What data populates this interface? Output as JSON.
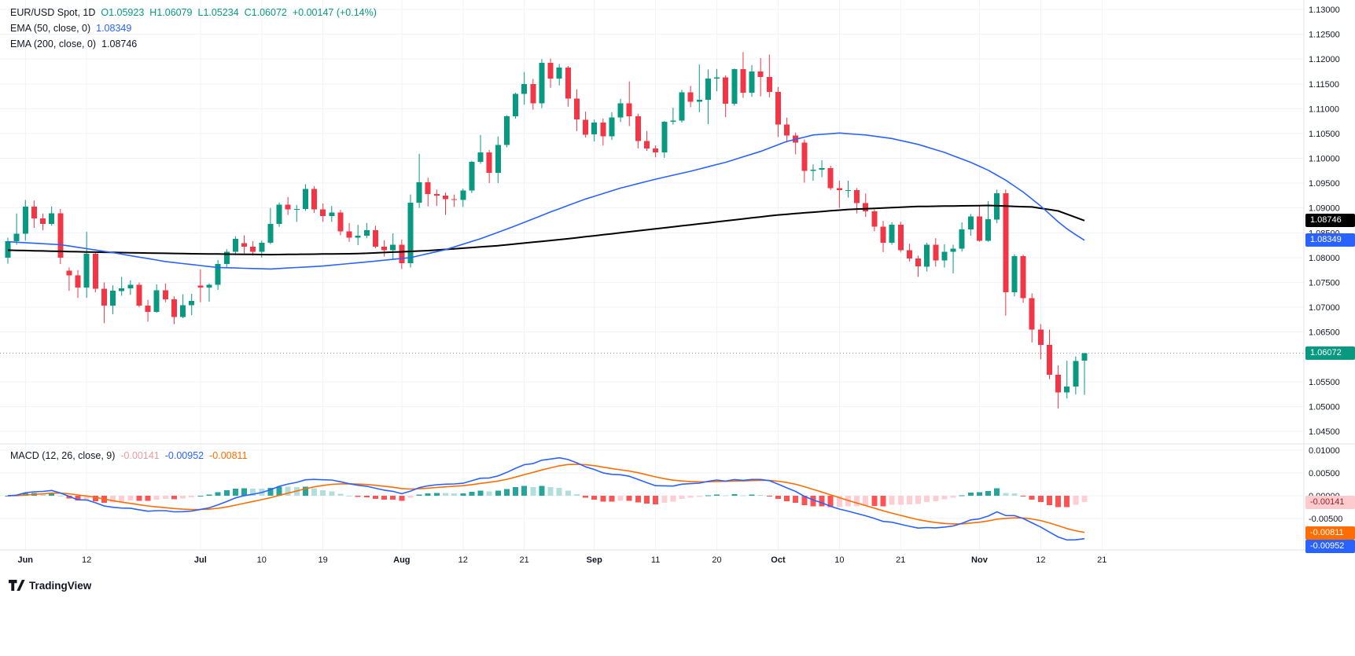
{
  "header": {
    "symbol_title": "EUR/USD Spot, 1D",
    "ohlc": {
      "o": "O1.05923",
      "h": "H1.06079",
      "l": "L1.05234",
      "c": "C1.06072",
      "change": "+0.00147 (+0.14%)"
    },
    "ema50": {
      "label": "EMA (50, close, 0)",
      "value": "1.08349"
    },
    "ema200": {
      "label": "EMA (200, close, 0)",
      "value": "1.08746"
    }
  },
  "macd_legend": {
    "label": "MACD (12, 26, close, 9)",
    "hist_value": "-0.00141",
    "macd_value": "-0.00952",
    "signal_value": "-0.00811"
  },
  "axis_badges": {
    "ema200": {
      "label": "1.08746",
      "value": 1.08746,
      "pane": "main"
    },
    "ema50": {
      "label": "1.08349",
      "value": 1.08349,
      "pane": "main"
    },
    "price": {
      "label": "1.06072",
      "value": 1.06072,
      "pane": "main"
    },
    "macd_hist": {
      "label": "-0.00141",
      "value": -0.00141,
      "pane": "macd"
    },
    "macd_signal": {
      "label": "-0.00811",
      "value": -0.00811,
      "pane": "macd"
    },
    "macd_line": {
      "label": "-0.00952",
      "value": -0.00952,
      "pane": "macd"
    }
  },
  "watermark": {
    "brand": "TradingView"
  },
  "colors": {
    "up": "#089981",
    "down": "#f23645",
    "ema50": "#2962ff",
    "ema200": "#000000",
    "macd": "#2962ff",
    "signal": "#ff6d00",
    "hist_grow_above": "#26a69a",
    "hist_fall_above": "#b2dfdb",
    "hist_fall_below": "#ff5252",
    "hist_grow_below": "#ffcdd2",
    "grid": "#f0f3fa",
    "border": "#e0e3eb",
    "axis_text": "#131722",
    "price_line": "#9598a1",
    "legend_hist_value": "#f09a9f"
  },
  "chart_data": {
    "type": "candlestick",
    "symbol": "EUR/USD Spot",
    "timeframe": "1D",
    "ylim": [
      1.045,
      1.13
    ],
    "current_price": 1.06072,
    "macd_params": {
      "fast": 12,
      "slow": 26,
      "signal": 9,
      "source": "close"
    },
    "price_ticks": [
      {
        "v": 1.13,
        "label": "1.13000"
      },
      {
        "v": 1.125,
        "label": "1.12500"
      },
      {
        "v": 1.12,
        "label": "1.12000"
      },
      {
        "v": 1.115,
        "label": "1.11500"
      },
      {
        "v": 1.11,
        "label": "1.11000"
      },
      {
        "v": 1.105,
        "label": "1.10500"
      },
      {
        "v": 1.1,
        "label": "1.10000"
      },
      {
        "v": 1.095,
        "label": "1.09500"
      },
      {
        "v": 1.09,
        "label": "1.09000"
      },
      {
        "v": 1.085,
        "label": "1.08500"
      },
      {
        "v": 1.08,
        "label": "1.08000"
      },
      {
        "v": 1.075,
        "label": "1.07500"
      },
      {
        "v": 1.07,
        "label": "1.07000"
      },
      {
        "v": 1.065,
        "label": "1.06500"
      },
      {
        "v": 1.055,
        "label": "1.05500"
      },
      {
        "v": 1.05,
        "label": "1.05000"
      },
      {
        "v": 1.045,
        "label": "1.04500"
      }
    ],
    "macd_ticks": [
      {
        "v": 0.01,
        "label": "0.01000"
      },
      {
        "v": 0.005,
        "label": "0.00500"
      },
      {
        "v": 0,
        "label": "0.00000"
      },
      {
        "v": -0.005,
        "label": "-0.00500"
      }
    ],
    "time_ticks": [
      {
        "index": 2,
        "label": "Jun",
        "major": true
      },
      {
        "index": 9,
        "label": "12",
        "major": false
      },
      {
        "index": 22,
        "label": "Jul",
        "major": true
      },
      {
        "index": 29,
        "label": "10",
        "major": false
      },
      {
        "index": 36,
        "label": "19",
        "major": false
      },
      {
        "index": 45,
        "label": "Aug",
        "major": true
      },
      {
        "index": 52,
        "label": "12",
        "major": false
      },
      {
        "index": 59,
        "label": "21",
        "major": false
      },
      {
        "index": 67,
        "label": "Sep",
        "major": true
      },
      {
        "index": 74,
        "label": "11",
        "major": false
      },
      {
        "index": 81,
        "label": "20",
        "major": false
      },
      {
        "index": 88,
        "label": "Oct",
        "major": true
      },
      {
        "index": 95,
        "label": "10",
        "major": false
      },
      {
        "index": 102,
        "label": "21",
        "major": false
      },
      {
        "index": 111,
        "label": "Nov",
        "major": true
      },
      {
        "index": 118,
        "label": "12",
        "major": false
      },
      {
        "index": 125,
        "label": "21",
        "major": false
      }
    ],
    "candles": [
      [
        1.08,
        1.084,
        1.0788,
        1.0833
      ],
      [
        1.0833,
        1.0889,
        1.0826,
        1.0848
      ],
      [
        1.0848,
        1.0916,
        1.0834,
        1.0903
      ],
      [
        1.0903,
        1.0915,
        1.086,
        1.0879
      ],
      [
        1.0879,
        1.0889,
        1.0855,
        1.0868
      ],
      [
        1.0868,
        1.0903,
        1.0864,
        1.0889
      ],
      [
        1.0889,
        1.0898,
        1.0787,
        1.08
      ],
      [
        1.0774,
        1.078,
        1.0733,
        1.0764
      ],
      [
        1.0764,
        1.0775,
        1.0719,
        1.074
      ],
      [
        1.074,
        1.0852,
        1.0719,
        1.0808
      ],
      [
        1.0808,
        1.0812,
        1.073,
        1.0737
      ],
      [
        1.0737,
        1.075,
        1.0668,
        1.0703
      ],
      [
        1.0703,
        1.0744,
        1.0686,
        1.0733
      ],
      [
        1.0733,
        1.0761,
        1.0723,
        1.0738
      ],
      [
        1.0738,
        1.0754,
        1.0725,
        1.0745
      ],
      [
        1.0745,
        1.075,
        1.07,
        1.0703
      ],
      [
        1.0703,
        1.0715,
        1.0671,
        1.0691
      ],
      [
        1.0691,
        1.0746,
        1.0689,
        1.0734
      ],
      [
        1.0734,
        1.0748,
        1.071,
        1.0716
      ],
      [
        1.0716,
        1.0722,
        1.0666,
        1.068
      ],
      [
        1.068,
        1.0726,
        1.0678,
        1.0704
      ],
      [
        1.0704,
        1.0727,
        1.0684,
        1.0713
      ],
      [
        1.0744,
        1.0776,
        1.071,
        1.074
      ],
      [
        1.074,
        1.0748,
        1.0711,
        1.0745
      ],
      [
        1.0745,
        1.0795,
        1.0735,
        1.0787
      ],
      [
        1.0787,
        1.0817,
        1.0781,
        1.0812
      ],
      [
        1.0812,
        1.0843,
        1.0805,
        1.0838
      ],
      [
        1.0829,
        1.0845,
        1.0807,
        1.0822
      ],
      [
        1.0822,
        1.0833,
        1.0804,
        1.0812
      ],
      [
        1.0812,
        1.0834,
        1.08,
        1.083
      ],
      [
        1.083,
        1.09,
        1.0827,
        1.0868
      ],
      [
        1.0868,
        1.0911,
        1.0862,
        1.0907
      ],
      [
        1.0907,
        1.0922,
        1.0886,
        1.0897
      ],
      [
        1.0897,
        1.0906,
        1.0872,
        1.0898
      ],
      [
        1.0898,
        1.0948,
        1.0894,
        1.0938
      ],
      [
        1.0938,
        1.0944,
        1.089,
        1.0897
      ],
      [
        1.0897,
        1.0909,
        1.0872,
        1.0884
      ],
      [
        1.0884,
        1.0904,
        1.0872,
        1.0891
      ],
      [
        1.0891,
        1.0896,
        1.0845,
        1.0853
      ],
      [
        1.0853,
        1.087,
        1.0832,
        1.084
      ],
      [
        1.084,
        1.0866,
        1.0825,
        1.0844
      ],
      [
        1.0844,
        1.087,
        1.0839,
        1.0855
      ],
      [
        1.0855,
        1.0864,
        1.0819,
        1.0822
      ],
      [
        1.0822,
        1.0835,
        1.0802,
        1.0815
      ],
      [
        1.0815,
        1.0849,
        1.0796,
        1.0826
      ],
      [
        1.0826,
        1.0836,
        1.0777,
        1.0789
      ],
      [
        1.0789,
        1.0927,
        1.078,
        1.0911
      ],
      [
        1.0911,
        1.1009,
        1.09,
        1.0952
      ],
      [
        1.0952,
        1.0961,
        1.0903,
        1.0928
      ],
      [
        1.0928,
        1.0937,
        1.0904,
        1.0925
      ],
      [
        1.0925,
        1.0931,
        1.0886,
        1.0918
      ],
      [
        1.0918,
        1.0927,
        1.0902,
        1.0916
      ],
      [
        1.0916,
        1.0939,
        1.0902,
        1.0935
      ],
      [
        1.0935,
        1.0995,
        1.093,
        1.0993
      ],
      [
        1.0993,
        1.1047,
        1.0989,
        1.1012
      ],
      [
        1.1012,
        1.1017,
        1.095,
        1.0971
      ],
      [
        1.0971,
        1.1044,
        1.095,
        1.1027
      ],
      [
        1.1027,
        1.1087,
        1.1022,
        1.1085
      ],
      [
        1.1085,
        1.1132,
        1.108,
        1.113
      ],
      [
        1.113,
        1.1174,
        1.1108,
        1.115
      ],
      [
        1.115,
        1.116,
        1.1098,
        1.1111
      ],
      [
        1.1111,
        1.12,
        1.1101,
        1.1192
      ],
      [
        1.1192,
        1.1201,
        1.1142,
        1.1161
      ],
      [
        1.1161,
        1.119,
        1.1147,
        1.1183
      ],
      [
        1.1183,
        1.1186,
        1.1104,
        1.112
      ],
      [
        1.112,
        1.1139,
        1.1055,
        1.1078
      ],
      [
        1.1078,
        1.1094,
        1.1042,
        1.1048
      ],
      [
        1.1048,
        1.1078,
        1.1034,
        1.1072
      ],
      [
        1.1072,
        1.108,
        1.1026,
        1.1044
      ],
      [
        1.1044,
        1.1093,
        1.1037,
        1.1082
      ],
      [
        1.1082,
        1.112,
        1.1073,
        1.1111
      ],
      [
        1.1111,
        1.1155,
        1.1065,
        1.1085
      ],
      [
        1.1085,
        1.109,
        1.102,
        1.1035
      ],
      [
        1.1035,
        1.1055,
        1.1015,
        1.102
      ],
      [
        1.102,
        1.1026,
        1.1002,
        1.1012
      ],
      [
        1.1012,
        1.1075,
        1.1001,
        1.1074
      ],
      [
        1.1074,
        1.1102,
        1.1068,
        1.1076
      ],
      [
        1.1076,
        1.1138,
        1.1072,
        1.1133
      ],
      [
        1.1133,
        1.1146,
        1.1103,
        1.1114
      ],
      [
        1.1114,
        1.1189,
        1.1093,
        1.1118
      ],
      [
        1.1118,
        1.1179,
        1.1069,
        1.1161
      ],
      [
        1.1161,
        1.118,
        1.1135,
        1.1163
      ],
      [
        1.1163,
        1.1167,
        1.1083,
        1.111
      ],
      [
        1.111,
        1.1181,
        1.1106,
        1.118
      ],
      [
        1.118,
        1.1214,
        1.1122,
        1.1132
      ],
      [
        1.1132,
        1.1188,
        1.1124,
        1.1175
      ],
      [
        1.1175,
        1.1202,
        1.1125,
        1.1164
      ],
      [
        1.1164,
        1.1209,
        1.1123,
        1.1134
      ],
      [
        1.1134,
        1.1144,
        1.1043,
        1.1068
      ],
      [
        1.1068,
        1.1082,
        1.1032,
        1.1046
      ],
      [
        1.1046,
        1.1052,
        1.1008,
        1.1032
      ],
      [
        1.1032,
        1.1038,
        1.0951,
        1.0975
      ],
      [
        1.0975,
        1.0988,
        1.0955,
        1.0977
      ],
      [
        1.0977,
        1.0996,
        1.0962,
        1.098
      ],
      [
        1.098,
        1.0985,
        1.0936,
        1.094
      ],
      [
        1.094,
        1.0955,
        1.09,
        1.0936
      ],
      [
        1.0936,
        1.0955,
        1.0921,
        1.0936
      ],
      [
        1.0936,
        1.094,
        1.0889,
        1.091
      ],
      [
        1.091,
        1.0929,
        1.0882,
        1.0893
      ],
      [
        1.0893,
        1.0897,
        1.0853,
        1.0862
      ],
      [
        1.0862,
        1.0874,
        1.0811,
        1.083
      ],
      [
        1.083,
        1.0871,
        1.0826,
        1.0866
      ],
      [
        1.0866,
        1.0872,
        1.0811,
        1.0815
      ],
      [
        1.0815,
        1.0828,
        1.0792,
        1.0798
      ],
      [
        1.0798,
        1.0804,
        1.0761,
        1.0782
      ],
      [
        1.0782,
        1.083,
        1.0772,
        1.0826
      ],
      [
        1.0826,
        1.0839,
        1.0782,
        1.0794
      ],
      [
        1.0794,
        1.0827,
        1.078,
        1.0812
      ],
      [
        1.0812,
        1.0826,
        1.0768,
        1.0818
      ],
      [
        1.0818,
        1.0871,
        1.0812,
        1.0857
      ],
      [
        1.0857,
        1.0888,
        1.0844,
        1.0883
      ],
      [
        1.0883,
        1.0905,
        1.0832,
        1.0834
      ],
      [
        1.0834,
        1.0914,
        1.0832,
        1.0877
      ],
      [
        1.0877,
        1.0937,
        1.0869,
        1.093
      ],
      [
        1.093,
        1.0937,
        1.0683,
        1.073
      ],
      [
        1.073,
        1.0807,
        1.0722,
        1.0803
      ],
      [
        1.0803,
        1.0806,
        1.0709,
        1.0718
      ],
      [
        1.0718,
        1.0728,
        1.0629,
        1.0655
      ],
      [
        1.0655,
        1.0666,
        1.0595,
        1.0624
      ],
      [
        1.0624,
        1.0655,
        1.0555,
        1.0564
      ],
      [
        1.0564,
        1.0583,
        1.0496,
        1.0528
      ],
      [
        1.0528,
        1.0592,
        1.0516,
        1.054
      ],
      [
        1.054,
        1.0601,
        1.0524,
        1.0592
      ],
      [
        1.05923,
        1.06079,
        1.05234,
        1.06072
      ]
    ],
    "ema50_points": [
      [
        0,
        1.0832
      ],
      [
        6,
        1.0826
      ],
      [
        12,
        1.081
      ],
      [
        18,
        1.0792
      ],
      [
        24,
        1.078
      ],
      [
        30,
        1.0777
      ],
      [
        36,
        1.0783
      ],
      [
        42,
        1.0793
      ],
      [
        46,
        1.08
      ],
      [
        50,
        1.0816
      ],
      [
        54,
        1.0838
      ],
      [
        58,
        1.0864
      ],
      [
        62,
        1.0892
      ],
      [
        66,
        1.0918
      ],
      [
        70,
        1.094
      ],
      [
        74,
        1.0958
      ],
      [
        78,
        1.0974
      ],
      [
        82,
        1.0992
      ],
      [
        86,
        1.1014
      ],
      [
        89,
        1.1034
      ],
      [
        92,
        1.1047
      ],
      [
        95,
        1.1051
      ],
      [
        98,
        1.1047
      ],
      [
        101,
        1.104
      ],
      [
        104,
        1.1028
      ],
      [
        107,
        1.1012
      ],
      [
        110,
        1.0992
      ],
      [
        112,
        1.0976
      ],
      [
        114,
        1.0956
      ],
      [
        116,
        1.0932
      ],
      [
        118,
        1.0904
      ],
      [
        120,
        1.0872
      ],
      [
        121,
        1.0858
      ],
      [
        122,
        1.0846
      ],
      [
        123,
        1.08349
      ]
    ],
    "ema200_points": [
      [
        0,
        1.0815
      ],
      [
        10,
        1.0811
      ],
      [
        20,
        1.0808
      ],
      [
        30,
        1.0806
      ],
      [
        40,
        1.0808
      ],
      [
        48,
        1.0814
      ],
      [
        56,
        1.0824
      ],
      [
        64,
        1.0838
      ],
      [
        72,
        1.0854
      ],
      [
        80,
        1.087
      ],
      [
        88,
        1.0886
      ],
      [
        96,
        1.0897
      ],
      [
        104,
        1.0903
      ],
      [
        112,
        1.0905
      ],
      [
        117,
        1.0902
      ],
      [
        120,
        1.0894
      ],
      [
        123,
        1.08746
      ]
    ]
  }
}
